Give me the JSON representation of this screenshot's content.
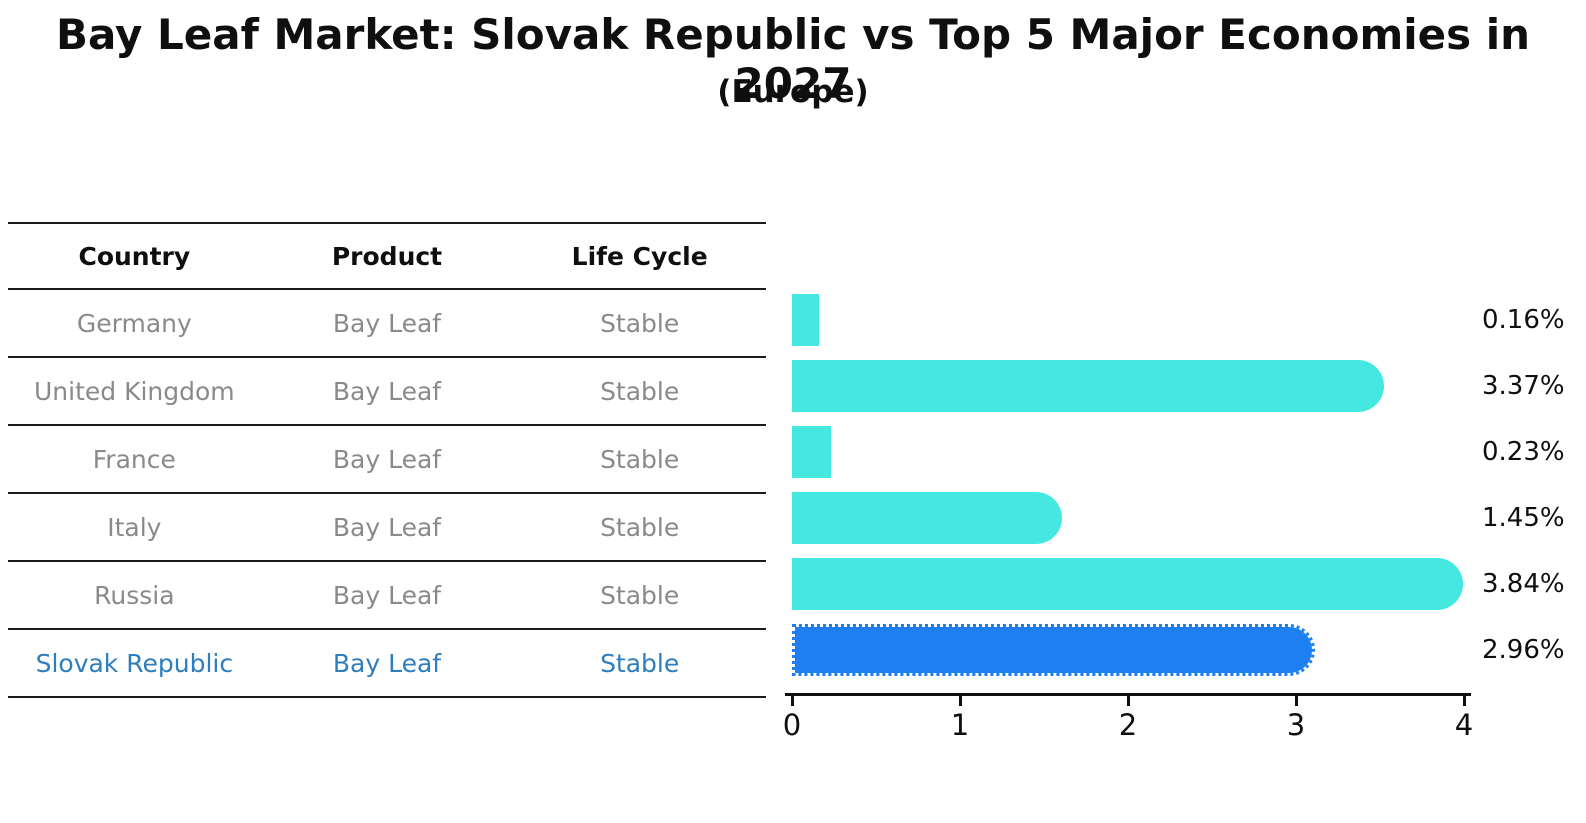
{
  "title": "Bay Leaf Market: Slovak Republic vs Top 5 Major Economies in 2027",
  "subtitle": "(Europe)",
  "table": {
    "columns": [
      "Country",
      "Product",
      "Life Cycle"
    ]
  },
  "rows": [
    {
      "country": "Germany",
      "product": "Bay Leaf",
      "life_cycle": "Stable",
      "value": 0.16,
      "label": "0.16%",
      "highlight": false
    },
    {
      "country": "United Kingdom",
      "product": "Bay Leaf",
      "life_cycle": "Stable",
      "value": 3.37,
      "label": "3.37%",
      "highlight": false
    },
    {
      "country": "France",
      "product": "Bay Leaf",
      "life_cycle": "Stable",
      "value": 0.23,
      "label": "0.23%",
      "highlight": false
    },
    {
      "country": "Italy",
      "product": "Bay Leaf",
      "life_cycle": "Stable",
      "value": 1.45,
      "label": "1.45%",
      "highlight": false
    },
    {
      "country": "Russia",
      "product": "Bay Leaf",
      "life_cycle": "Stable",
      "value": 3.84,
      "label": "3.84%",
      "highlight": false
    },
    {
      "country": "Slovak Republic",
      "product": "Bay Leaf",
      "life_cycle": "Stable",
      "value": 2.96,
      "label": "2.96%",
      "highlight": true
    }
  ],
  "chart_data": {
    "type": "bar",
    "orientation": "horizontal",
    "title": "Bay Leaf Market: Slovak Republic vs Top 5 Major Economies in 2027",
    "subtitle": "(Europe)",
    "categories": [
      "Germany",
      "United Kingdom",
      "France",
      "Italy",
      "Russia",
      "Slovak Republic"
    ],
    "values": [
      0.16,
      3.37,
      0.23,
      1.45,
      3.84,
      2.96
    ],
    "value_labels": [
      "0.16%",
      "3.37%",
      "0.23%",
      "1.45%",
      "3.84%",
      "2.96%"
    ],
    "xlim": [
      0,
      4
    ],
    "xticks": [
      0,
      1,
      2,
      3,
      4
    ],
    "grid": false,
    "legend": false,
    "highlight_index": 5
  },
  "colors": {
    "bar_default": "#45E8E1",
    "bar_highlight": "#1E80F0",
    "highlight_text": "#2E7EBE",
    "row_text": "#8A8A8A",
    "ink": "#0F0F0F"
  }
}
